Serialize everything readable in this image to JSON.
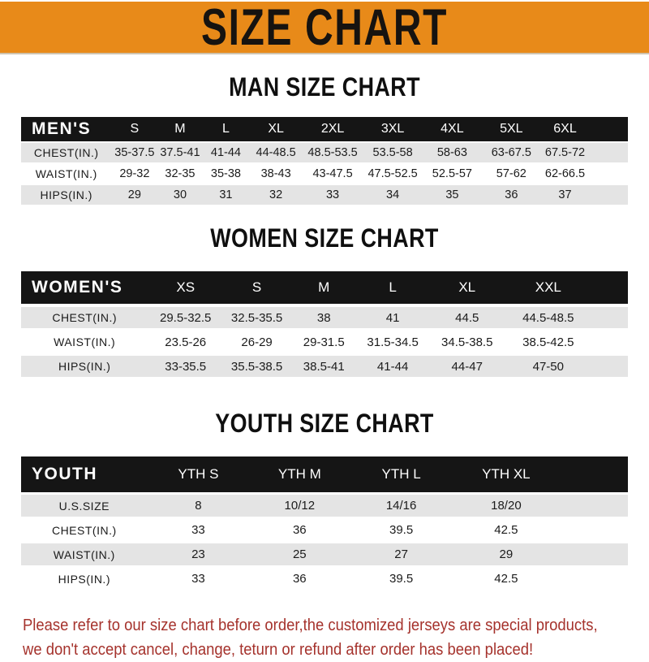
{
  "banner": {
    "title": "SIZE CHART"
  },
  "men": {
    "heading": "MAN SIZE CHART",
    "table": {
      "header": [
        "MEN'S",
        "S",
        "M",
        "L",
        "XL",
        "2XL",
        "3XL",
        "4XL",
        "5XL",
        "6XL"
      ],
      "rows": [
        [
          "CHEST(IN.)",
          "35-37.5",
          "37.5-41",
          "41-44",
          "44-48.5",
          "48.5-53.5",
          "53.5-58",
          "58-63",
          "63-67.5",
          "67.5-72"
        ],
        [
          "WAIST(IN.)",
          "29-32",
          "32-35",
          "35-38",
          "38-43",
          "43-47.5",
          "47.5-52.5",
          "52.5-57",
          "57-62",
          "62-66.5"
        ],
        [
          "HIPS(IN.)",
          "29",
          "30",
          "31",
          "32",
          "33",
          "34",
          "35",
          "36",
          "37"
        ]
      ]
    }
  },
  "women": {
    "heading": "WOMEN SIZE CHART",
    "table": {
      "header": [
        "WOMEN'S",
        "XS",
        "S",
        "M",
        "L",
        "XL",
        "XXL"
      ],
      "rows": [
        [
          "CHEST(IN.)",
          "29.5-32.5",
          "32.5-35.5",
          "38",
          "41",
          "44.5",
          "44.5-48.5"
        ],
        [
          "WAIST(IN.)",
          "23.5-26",
          "26-29",
          "29-31.5",
          "31.5-34.5",
          "34.5-38.5",
          "38.5-42.5"
        ],
        [
          "HIPS(IN.)",
          "33-35.5",
          "35.5-38.5",
          "38.5-41",
          "41-44",
          "44-47",
          "47-50"
        ]
      ]
    }
  },
  "youth": {
    "heading": "YOUTH SIZE CHART",
    "table": {
      "header": [
        "YOUTH",
        "YTH S",
        "YTH M",
        "YTH L",
        "YTH XL"
      ],
      "rows": [
        [
          "U.S.SIZE",
          "8",
          "10/12",
          "14/16",
          "18/20"
        ],
        [
          "CHEST(IN.)",
          "33",
          "36",
          "39.5",
          "42.5"
        ],
        [
          "WAIST(IN.)",
          "23",
          "25",
          "27",
          "29"
        ],
        [
          "HIPS(IN.)",
          "33",
          "36",
          "39.5",
          "42.5"
        ]
      ]
    }
  },
  "footer": {
    "line1": "Please refer to our size chart before order,the customized jerseys are special products,",
    "line2": "we don't accept cancel, change, teturn or refund after order has been placed!"
  },
  "colors": {
    "banner_bg": "#E88A19",
    "banner_text": "#161310",
    "header_bar_bg": "#151515",
    "header_bar_text": "#ffffff",
    "row_alt_bg": "#E4E4E4",
    "footer_text": "#A5322C"
  }
}
